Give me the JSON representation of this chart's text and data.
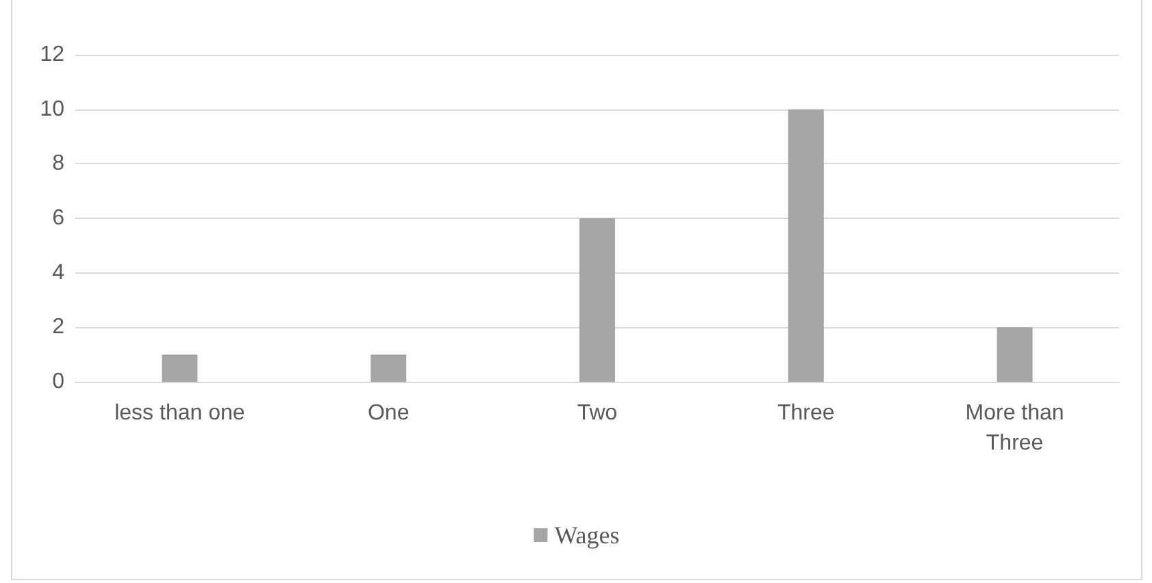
{
  "chart_data": {
    "type": "bar",
    "categories": [
      "less than one",
      "One",
      "Two",
      "Three",
      "More than\nThree"
    ],
    "series": [
      {
        "name": "Wages",
        "color": "#a5a5a5",
        "values": [
          1,
          1,
          6,
          10,
          2
        ]
      }
    ],
    "ylim": [
      0,
      12
    ],
    "yticks": [
      0,
      2,
      4,
      6,
      8,
      10,
      12
    ],
    "grid": "y",
    "legend": "bottom"
  }
}
